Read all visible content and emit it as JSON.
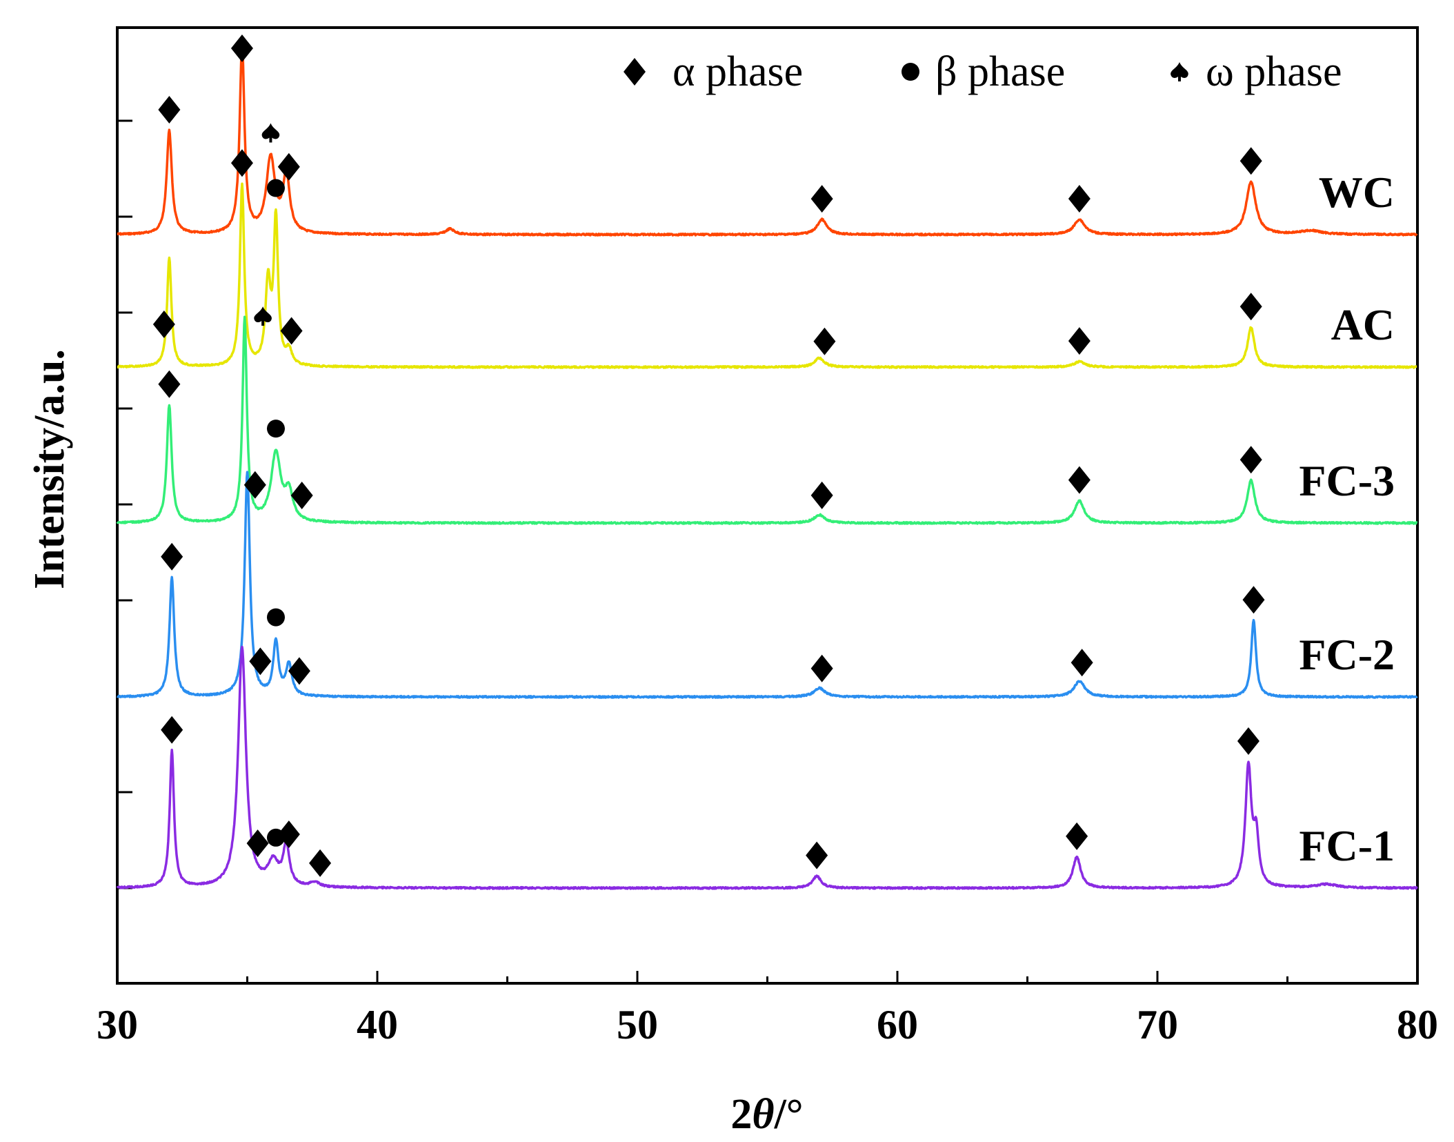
{
  "chart_data": {
    "type": "line",
    "title": "",
    "xlabel": "2θ/°",
    "ylabel": "Intensity/a.u.",
    "xlim": [
      30,
      80
    ],
    "xticks": [
      30,
      40,
      50,
      60,
      70,
      80
    ],
    "yticks_shown": false,
    "legend": {
      "placement": "top-right",
      "entries": [
        {
          "symbol": "diamond",
          "label": "α phase"
        },
        {
          "symbol": "circle",
          "label": "β phase"
        },
        {
          "symbol": "spade",
          "label": "ω phase"
        }
      ]
    },
    "series": [
      {
        "name": "WC",
        "color": "#FF4500",
        "offset": 4,
        "scale": 1.3,
        "peaks": [
          {
            "x": 32.0,
            "h": 0.55,
            "w": 0.12
          },
          {
            "x": 34.8,
            "h": 1.0,
            "w": 0.11
          },
          {
            "x": 35.9,
            "h": 0.4,
            "w": 0.2
          },
          {
            "x": 36.5,
            "h": 0.3,
            "w": 0.16
          },
          {
            "x": 42.8,
            "h": 0.03,
            "w": 0.2
          },
          {
            "x": 57.1,
            "h": 0.08,
            "w": 0.22
          },
          {
            "x": 67.0,
            "h": 0.08,
            "w": 0.25
          },
          {
            "x": 73.6,
            "h": 0.28,
            "w": 0.22
          },
          {
            "x": 75.9,
            "h": 0.02,
            "w": 0.5
          }
        ],
        "markers": [
          {
            "x": 32.0,
            "symbol": "diamond"
          },
          {
            "x": 34.8,
            "symbol": "diamond"
          },
          {
            "x": 35.9,
            "symbol": "spade"
          },
          {
            "x": 36.6,
            "symbol": "diamond"
          },
          {
            "x": 57.1,
            "symbol": "diamond"
          },
          {
            "x": 67.0,
            "symbol": "diamond"
          },
          {
            "x": 73.6,
            "symbol": "diamond"
          }
        ]
      },
      {
        "name": "AC",
        "color": "#E6E600",
        "offset": 3,
        "scale": 1.25,
        "peaks": [
          {
            "x": 32.0,
            "h": 0.6,
            "w": 0.1
          },
          {
            "x": 34.8,
            "h": 1.0,
            "w": 0.1
          },
          {
            "x": 35.8,
            "h": 0.45,
            "w": 0.12
          },
          {
            "x": 36.1,
            "h": 0.8,
            "w": 0.1
          },
          {
            "x": 36.6,
            "h": 0.08,
            "w": 0.14
          },
          {
            "x": 57.0,
            "h": 0.05,
            "w": 0.22
          },
          {
            "x": 67.0,
            "h": 0.03,
            "w": 0.25
          },
          {
            "x": 73.6,
            "h": 0.22,
            "w": 0.16
          }
        ],
        "markers": [
          {
            "x": 31.8,
            "symbol": "diamond"
          },
          {
            "x": 34.8,
            "symbol": "diamond"
          },
          {
            "x": 36.1,
            "symbol": "circle"
          },
          {
            "x": 35.6,
            "symbol": "spade"
          },
          {
            "x": 36.7,
            "symbol": "diamond"
          },
          {
            "x": 57.2,
            "symbol": "diamond"
          },
          {
            "x": 67.0,
            "symbol": "diamond"
          },
          {
            "x": 73.6,
            "symbol": "diamond"
          }
        ]
      },
      {
        "name": "FC-3",
        "color": "#33EE77",
        "offset": 2,
        "scale": 1.4,
        "peaks": [
          {
            "x": 32.0,
            "h": 0.58,
            "w": 0.11
          },
          {
            "x": 34.9,
            "h": 1.0,
            "w": 0.1
          },
          {
            "x": 36.1,
            "h": 0.34,
            "w": 0.22
          },
          {
            "x": 36.6,
            "h": 0.14,
            "w": 0.18
          },
          {
            "x": 57.0,
            "h": 0.04,
            "w": 0.25
          },
          {
            "x": 67.0,
            "h": 0.11,
            "w": 0.22
          },
          {
            "x": 73.6,
            "h": 0.21,
            "w": 0.18
          }
        ],
        "markers": [
          {
            "x": 32.0,
            "symbol": "diamond"
          },
          {
            "x": 35.3,
            "symbol": "diamond"
          },
          {
            "x": 36.1,
            "symbol": "circle"
          },
          {
            "x": 37.1,
            "symbol": "diamond"
          },
          {
            "x": 57.1,
            "symbol": "diamond"
          },
          {
            "x": 67.0,
            "symbol": "diamond"
          },
          {
            "x": 73.6,
            "symbol": "diamond"
          }
        ]
      },
      {
        "name": "FC-2",
        "color": "#2A8EF0",
        "offset": 1,
        "scale": 1.55,
        "peaks": [
          {
            "x": 32.1,
            "h": 0.53,
            "w": 0.11
          },
          {
            "x": 35.0,
            "h": 1.0,
            "w": 0.12
          },
          {
            "x": 36.1,
            "h": 0.24,
            "w": 0.12
          },
          {
            "x": 36.6,
            "h": 0.14,
            "w": 0.14
          },
          {
            "x": 57.0,
            "h": 0.04,
            "w": 0.25
          },
          {
            "x": 67.0,
            "h": 0.07,
            "w": 0.25
          },
          {
            "x": 73.7,
            "h": 0.34,
            "w": 0.11
          }
        ],
        "markers": [
          {
            "x": 32.1,
            "symbol": "diamond"
          },
          {
            "x": 35.5,
            "symbol": "diamond"
          },
          {
            "x": 36.1,
            "symbol": "circle"
          },
          {
            "x": 37.0,
            "symbol": "diamond"
          },
          {
            "x": 57.1,
            "symbol": "diamond"
          },
          {
            "x": 67.1,
            "symbol": "diamond"
          },
          {
            "x": 73.7,
            "symbol": "diamond"
          }
        ]
      },
      {
        "name": "FC-1",
        "color": "#8A2BE2",
        "offset": 0,
        "scale": 1.65,
        "peaks": [
          {
            "x": 32.1,
            "h": 0.57,
            "w": 0.1
          },
          {
            "x": 34.8,
            "h": 1.0,
            "w": 0.18
          },
          {
            "x": 36.0,
            "h": 0.1,
            "w": 0.25
          },
          {
            "x": 36.5,
            "h": 0.17,
            "w": 0.14
          },
          {
            "x": 37.6,
            "h": 0.02,
            "w": 0.2
          },
          {
            "x": 56.9,
            "h": 0.05,
            "w": 0.2
          },
          {
            "x": 66.9,
            "h": 0.13,
            "w": 0.18
          },
          {
            "x": 73.5,
            "h": 0.5,
            "w": 0.14
          },
          {
            "x": 73.8,
            "h": 0.2,
            "w": 0.12
          },
          {
            "x": 76.5,
            "h": 0.015,
            "w": 0.5
          }
        ],
        "markers": [
          {
            "x": 32.1,
            "symbol": "diamond"
          },
          {
            "x": 35.4,
            "symbol": "diamond"
          },
          {
            "x": 36.1,
            "symbol": "circle"
          },
          {
            "x": 36.6,
            "symbol": "diamond"
          },
          {
            "x": 37.8,
            "symbol": "diamond"
          },
          {
            "x": 56.9,
            "symbol": "diamond"
          },
          {
            "x": 66.9,
            "symbol": "diamond"
          },
          {
            "x": 73.5,
            "symbol": "diamond"
          }
        ]
      }
    ]
  }
}
